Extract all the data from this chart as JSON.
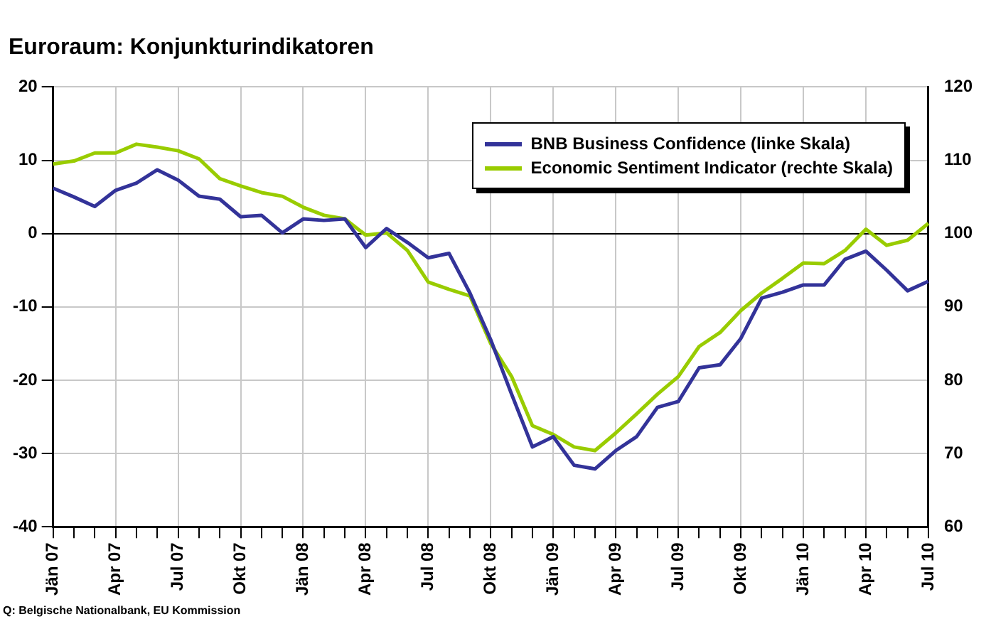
{
  "chart_data": {
    "type": "line",
    "title": "Euroraum: Konjunkturindikatoren",
    "categories": [
      "Jän 07",
      null,
      null,
      "Apr 07",
      null,
      null,
      "Jul 07",
      null,
      null,
      "Okt 07",
      null,
      null,
      "Jän 08",
      null,
      null,
      "Apr 08",
      null,
      null,
      "Jul 08",
      null,
      null,
      "Okt 08",
      null,
      null,
      "Jän 09",
      null,
      null,
      "Apr 09",
      null,
      null,
      "Jul 09",
      null,
      null,
      "Okt 09",
      null,
      null,
      "Jän 10",
      null,
      null,
      "Apr 10",
      null,
      null,
      "Jul 10"
    ],
    "series": [
      {
        "name": "BNB Business Confidence (linke Skala)",
        "color": "#333399",
        "values": [
          6.2,
          5.0,
          3.7,
          5.9,
          6.9,
          8.7,
          7.3,
          5.1,
          4.7,
          2.3,
          2.5,
          0.1,
          2.0,
          1.8,
          2.0,
          -1.9,
          0.7,
          -1.2,
          -3.3,
          -2.7,
          -8.1,
          -14.5,
          -21.9,
          -29.1,
          -27.7,
          -31.6,
          -32.1,
          -29.6,
          -27.7,
          -23.7,
          -22.9,
          -18.3,
          -17.9,
          -14.3,
          -8.8,
          -8.0,
          -7.0,
          -7.0,
          -3.5,
          -2.4,
          -5.0,
          -7.8,
          -6.5
        ]
      },
      {
        "name": "Economic Sentiment Indicator (rechte Skala)",
        "color": "#99cc00",
        "axis": "y2",
        "values": [
          109.5,
          109.9,
          111.0,
          111.0,
          112.2,
          111.8,
          111.3,
          110.2,
          107.5,
          106.5,
          105.6,
          105.1,
          103.6,
          102.5,
          102.0,
          99.8,
          100.1,
          97.7,
          93.4,
          92.4,
          91.5,
          85.0,
          80.5,
          73.8,
          72.6,
          70.9,
          70.4,
          72.8,
          75.4,
          78.1,
          80.5,
          84.6,
          86.5,
          89.5,
          91.9,
          93.9,
          96.0,
          95.9,
          97.7,
          100.6,
          98.4,
          99.1,
          101.4
        ]
      }
    ],
    "ylim": [
      -40,
      20
    ],
    "yticks": [
      -40,
      -30,
      -20,
      -10,
      0,
      10,
      20
    ],
    "y2lim": [
      60,
      120
    ],
    "y2ticks": [
      60,
      70,
      80,
      90,
      100,
      110,
      120
    ],
    "grid": true,
    "legend": "top right",
    "annotations": [
      "Q: Belgische Nationalbank, EU Kommission"
    ]
  }
}
